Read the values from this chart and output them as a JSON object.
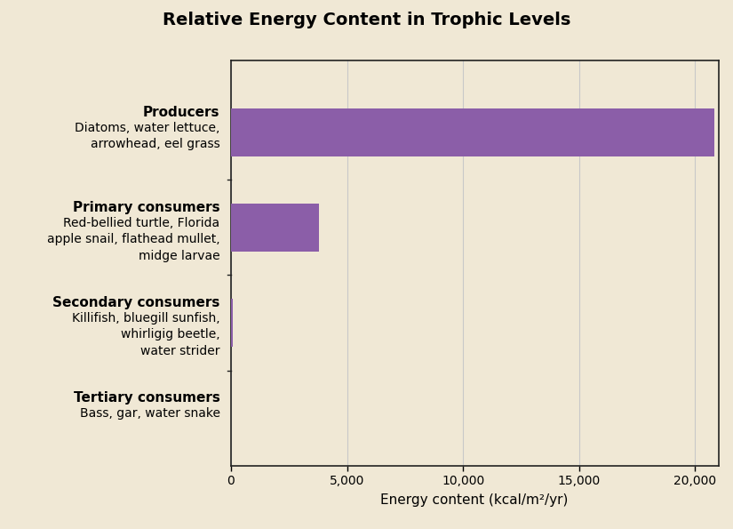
{
  "title": "Relative Energy Content in Trophic Levels",
  "title_bg_color": "#F5A86A",
  "background_color": "#F0E8D5",
  "plot_bg_color": "#F0E8D5",
  "bar_color": "#8B5EA8",
  "xlabel": "Energy content (kcal/m²/yr)",
  "xlim": [
    0,
    21000
  ],
  "xticks": [
    0,
    5000,
    10000,
    15000,
    20000
  ],
  "xticklabels": [
    "0",
    "5,000",
    "10,000",
    "15,000",
    "20,000"
  ],
  "values": [
    20810,
    3800,
    100,
    1
  ],
  "bold_labels": [
    "Producers",
    "Primary consumers",
    "Secondary consumers",
    "Tertiary consumers"
  ],
  "sub_labels": [
    "Diatoms, water lettuce,\narrowhead, eel grass",
    "Red-bellied turtle, Florida\napple snail, flathead mullet,\nmidge larvae",
    "Killifish, bluegill sunfish,\nwhirligig beetle,\nwater strider",
    "Bass, gar, water snake"
  ],
  "bar_height": 0.5,
  "grid_color": "#C8C8C8",
  "spine_color": "#222222",
  "title_fontsize": 14,
  "label_fontsize": 11,
  "sublabel_fontsize": 10,
  "tick_fontsize": 10,
  "xlabel_fontsize": 11
}
